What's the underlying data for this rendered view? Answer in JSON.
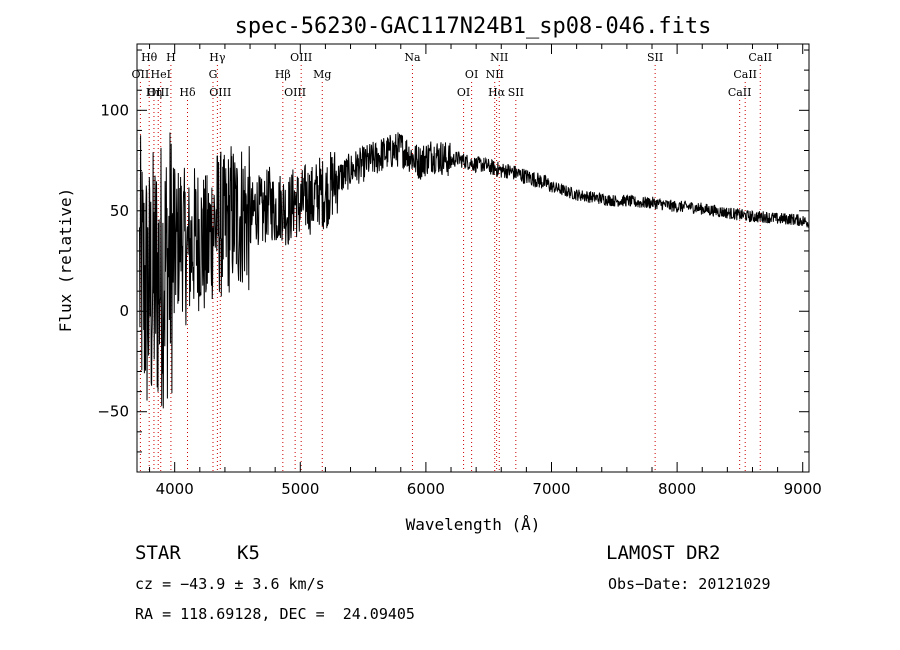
{
  "chart_data": {
    "type": "line",
    "title": "spec-56230-GAC117N24B1_sp08-046.fits",
    "xlabel": "Wavelength (Å)",
    "ylabel": "Flux (relative)",
    "xlim": [
      3700,
      9050
    ],
    "ylim": [
      -80,
      133
    ],
    "xticks": [
      4000,
      5000,
      6000,
      7000,
      8000,
      9000
    ],
    "yticks": [
      -50,
      0,
      50,
      100
    ],
    "grid": false,
    "line_color": "#000000",
    "marker_color": "#cc0000",
    "series": [
      {
        "x": [
          3720,
          3760,
          3800,
          3840,
          3880,
          3920,
          3960,
          4000,
          4050,
          4100,
          4150,
          4200,
          4250,
          4300,
          4350,
          4400,
          4450,
          4500,
          4550,
          4600,
          4650,
          4700,
          4750,
          4800,
          4850,
          4900,
          4950,
          5000,
          5050,
          5100,
          5150,
          5200,
          5250,
          5300,
          5350,
          5400,
          5450,
          5500,
          5550,
          5600,
          5650,
          5700,
          5750,
          5800,
          5850,
          5900,
          5950,
          6000,
          6050,
          6100,
          6150,
          6200,
          6250,
          6300,
          6350,
          6400,
          6450,
          6500,
          6550,
          6600,
          6650,
          6700,
          6750,
          6800,
          6850,
          6900,
          6950,
          7000,
          7100,
          7200,
          7300,
          7400,
          7500,
          7600,
          7700,
          7800,
          7900,
          8000,
          8100,
          8200,
          8300,
          8400,
          8500,
          8600,
          8700,
          8800,
          8900,
          9000,
          9050
        ],
        "y": [
          20,
          12,
          8,
          15,
          18,
          22,
          25,
          30,
          40,
          28,
          35,
          38,
          30,
          42,
          45,
          40,
          48,
          46,
          50,
          44,
          52,
          48,
          55,
          50,
          53,
          49,
          55,
          52,
          57,
          55,
          60,
          58,
          63,
          66,
          68,
          70,
          72,
          73,
          75,
          76,
          78,
          79,
          80,
          81,
          79,
          76,
          74,
          76,
          78,
          77,
          76,
          75,
          76,
          75,
          74,
          73,
          73,
          72,
          71,
          70,
          70,
          69,
          68,
          67,
          66,
          65,
          64,
          62,
          60,
          58,
          57,
          56,
          55,
          55,
          54,
          54,
          53,
          52,
          52,
          51,
          50,
          49,
          48,
          47,
          47,
          46,
          46,
          45,
          44
        ]
      }
    ],
    "line_markers": [
      {
        "label": "Hθ",
        "x": 3797,
        "row": 0
      },
      {
        "label": "H",
        "x": 3970,
        "row": 0
      },
      {
        "label": "Hγ",
        "x": 4340,
        "row": 0
      },
      {
        "label": "OIII",
        "x": 5007,
        "row": 0
      },
      {
        "label": "Na",
        "x": 5893,
        "row": 0
      },
      {
        "label": "NII",
        "x": 6584,
        "row": 0
      },
      {
        "label": "SII",
        "x": 7825,
        "row": 0
      },
      {
        "label": "CaII",
        "x": 8662,
        "row": 0
      },
      {
        "label": "OII",
        "x": 3727,
        "row": 1
      },
      {
        "label": "HeI",
        "x": 3889,
        "row": 1
      },
      {
        "label": "G",
        "x": 4305,
        "row": 1
      },
      {
        "label": "Hβ",
        "x": 4861,
        "row": 1
      },
      {
        "label": "Mg",
        "x": 5175,
        "row": 1
      },
      {
        "label": "OI",
        "x": 6364,
        "row": 1
      },
      {
        "label": "NII",
        "x": 6548,
        "row": 1
      },
      {
        "label": "CaII",
        "x": 8542,
        "row": 1
      },
      {
        "label": "OIII",
        "x": 3869,
        "row": 2
      },
      {
        "label": "Hη",
        "x": 3835,
        "row": 2
      },
      {
        "label": "Hδ",
        "x": 4102,
        "row": 2
      },
      {
        "label": "OIII",
        "x": 4363,
        "row": 2
      },
      {
        "label": "OIII",
        "x": 4959,
        "row": 2
      },
      {
        "label": "OI",
        "x": 6300,
        "row": 2
      },
      {
        "label": "Hα",
        "x": 6563,
        "row": 2
      },
      {
        "label": "SII",
        "x": 6716,
        "row": 2
      },
      {
        "label": "CaII",
        "x": 8498,
        "row": 2
      }
    ]
  },
  "info": {
    "object_type": "STAR",
    "subclass": "K5",
    "survey": "LAMOST DR2",
    "velocity": "cz = −43.9 ± 3.6 km/s",
    "obs_date": "Obs−Date: 20121029",
    "coords": "RA = 118.69128, DEC =  24.09405"
  }
}
